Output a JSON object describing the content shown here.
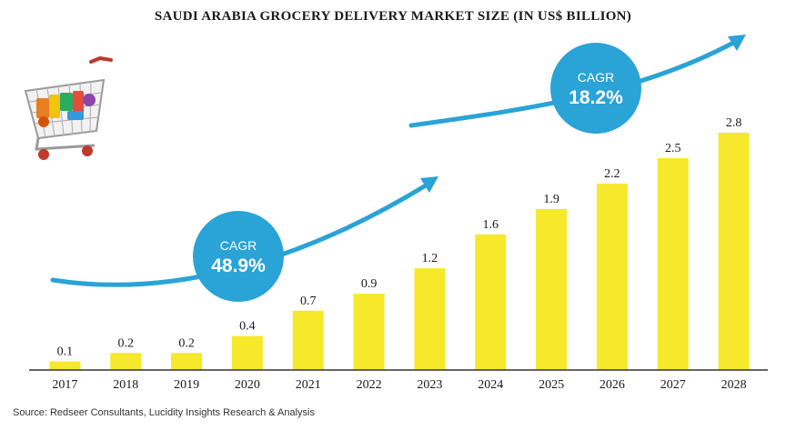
{
  "chart_data": {
    "type": "bar",
    "title": "SAUDI ARABIA GROCERY DELIVERY MARKET SIZE (IN US$ BILLION)",
    "categories": [
      "2017",
      "2018",
      "2019",
      "2020",
      "2021",
      "2022",
      "2023",
      "2024",
      "2025",
      "2026",
      "2027",
      "2028"
    ],
    "values": [
      0.1,
      0.2,
      0.2,
      0.4,
      0.7,
      0.9,
      1.2,
      1.6,
      1.9,
      2.2,
      2.5,
      2.8
    ],
    "value_labels": [
      "0.1",
      "0.2",
      "0.2",
      "0.4",
      "0.7",
      "0.9",
      "1.2",
      "1.6",
      "1.9",
      "2.2",
      "2.5",
      "2.8"
    ],
    "ylim": [
      0,
      2.8
    ],
    "grid": false,
    "colors": {
      "bar": "#f6e82a",
      "arrow": "#2aa3d6",
      "bubble": "#2aa3d6",
      "axis": "#333333"
    },
    "annotations": [
      {
        "label": "CAGR",
        "value": "48.9%"
      },
      {
        "label": "CAGR",
        "value": "18.2%"
      }
    ]
  },
  "source": "Source: Redseer Consultants, Lucidity Insights Research & Analysis",
  "decoration": {
    "illustration": "shopping-cart-icon"
  }
}
